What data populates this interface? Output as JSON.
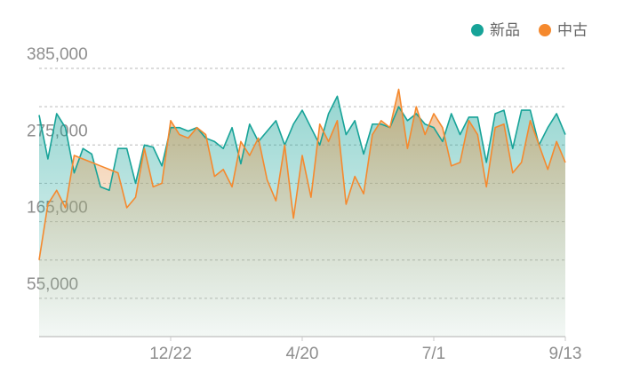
{
  "chart_data": {
    "type": "line",
    "categories": [
      null,
      null,
      null,
      null,
      null,
      null,
      null,
      null,
      null,
      null,
      null,
      null,
      null,
      null,
      null,
      "12/22",
      null,
      null,
      null,
      null,
      null,
      null,
      null,
      null,
      null,
      null,
      null,
      null,
      null,
      null,
      "4/20",
      null,
      null,
      null,
      null,
      null,
      null,
      null,
      null,
      null,
      null,
      null,
      null,
      null,
      null,
      "7/1",
      null,
      null,
      null,
      null,
      null,
      null,
      null,
      null,
      null,
      null,
      null,
      null,
      null,
      null,
      "9/13"
    ],
    "series": [
      {
        "name": "新品",
        "color": "#17a398",
        "values": [
          318000,
          255000,
          320000,
          300000,
          235000,
          270000,
          262000,
          215000,
          210000,
          270000,
          270000,
          220000,
          275000,
          272000,
          245000,
          300000,
          300000,
          295000,
          300000,
          285000,
          280000,
          270000,
          300000,
          248000,
          305000,
          280000,
          295000,
          310000,
          275000,
          305000,
          325000,
          300000,
          275000,
          320000,
          345000,
          290000,
          310000,
          262000,
          305000,
          305000,
          300000,
          330000,
          310000,
          320000,
          305000,
          300000,
          280000,
          320000,
          290000,
          315000,
          315000,
          250000,
          320000,
          325000,
          270000,
          325000,
          325000,
          275000,
          300000,
          320000,
          290000
        ]
      },
      {
        "name": "中古",
        "color": "#f5892e",
        "values": [
          110000,
          190000,
          210000,
          185000,
          260000,
          255000,
          250000,
          245000,
          240000,
          235000,
          185000,
          200000,
          270000,
          215000,
          220000,
          310000,
          290000,
          285000,
          300000,
          290000,
          230000,
          240000,
          215000,
          280000,
          260000,
          285000,
          225000,
          195000,
          275000,
          170000,
          260000,
          200000,
          305000,
          280000,
          310000,
          190000,
          230000,
          205000,
          290000,
          310000,
          300000,
          355000,
          270000,
          330000,
          290000,
          320000,
          300000,
          245000,
          250000,
          310000,
          290000,
          215000,
          300000,
          305000,
          235000,
          250000,
          310000,
          275000,
          240000,
          280000,
          250000
        ]
      }
    ],
    "ylim": [
      0,
      385000
    ],
    "yticks": [
      {
        "value": 55000,
        "label": "55,000"
      },
      {
        "value": 165000,
        "label": "165,000"
      },
      {
        "value": 275000,
        "label": "275,000"
      },
      {
        "value": 385000,
        "label": "385,000"
      }
    ],
    "minor_yticks": [
      110000,
      220000,
      330000
    ],
    "grid": true,
    "legend": "top-right"
  }
}
